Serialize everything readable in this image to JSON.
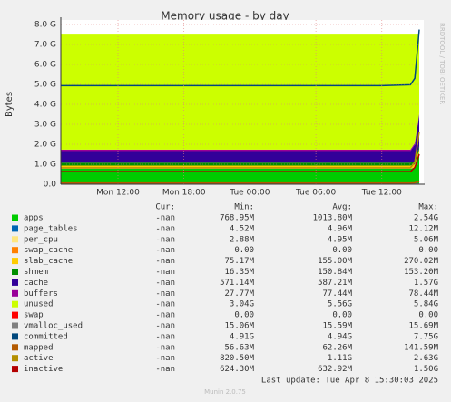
{
  "chart_data": {
    "type": "area",
    "title": "Memory usage - by day",
    "y_label": "Bytes",
    "side_text": "RRDTOOL / TOBI OETIKER",
    "footer": "Last update: Tue Apr  8 15:30:03 2025",
    "version": "Munin 2.0.75",
    "grid": true,
    "stat_headers": [
      "Cur:",
      "Min:",
      "Avg:",
      "Max:"
    ],
    "x": [
      6.8,
      12,
      18,
      24,
      30,
      36,
      38.6,
      39.0,
      39.4
    ],
    "xlim": [
      6.8,
      39.4
    ],
    "xticks": [
      {
        "value": 12,
        "label": "Mon 12:00"
      },
      {
        "value": 18,
        "label": "Mon 18:00"
      },
      {
        "value": 24,
        "label": "Tue 00:00"
      },
      {
        "value": 30,
        "label": "Tue 06:00"
      },
      {
        "value": 36,
        "label": "Tue 12:00"
      }
    ],
    "ylim": [
      0,
      8589934592
    ],
    "yticks": [
      {
        "value": 0,
        "label": "0.0"
      },
      {
        "value": 1073741824,
        "label": "1.0 G"
      },
      {
        "value": 2147483648,
        "label": "2.0 G"
      },
      {
        "value": 3221225472,
        "label": "3.0 G"
      },
      {
        "value": 4294967296,
        "label": "4.0 G"
      },
      {
        "value": 5368709120,
        "label": "5.0 G"
      },
      {
        "value": 6442450944,
        "label": "6.0 G"
      },
      {
        "value": 7516192768,
        "label": "7.0 G"
      },
      {
        "value": 8589934592,
        "label": "8.0 G"
      }
    ],
    "series": [
      {
        "name": "apps",
        "color": "#00cc00",
        "style": "area",
        "stats": [
          "-nan",
          "768.95M",
          "1013.80M",
          "2.54G"
        ],
        "values": [
          830000000,
          830000000,
          830000000,
          830000000,
          830000000,
          830000000,
          830000000,
          900000000,
          1700000000
        ]
      },
      {
        "name": "page_tables",
        "color": "#0066b3",
        "style": "area",
        "stats": [
          "-nan",
          "4.52M",
          "4.96M",
          "12.12M"
        ],
        "values": [
          5000000,
          5000000,
          5000000,
          5000000,
          5000000,
          5000000,
          5000000,
          5000000,
          5000000
        ]
      },
      {
        "name": "per_cpu",
        "color": "#ffe680",
        "style": "area",
        "stats": [
          "-nan",
          "2.88M",
          "4.95M",
          "5.06M"
        ],
        "values": [
          5000000,
          5000000,
          5000000,
          5000000,
          5000000,
          5000000,
          5000000,
          5000000,
          5000000
        ]
      },
      {
        "name": "swap_cache",
        "color": "#ff8000",
        "style": "area",
        "stats": [
          "-nan",
          "0.00",
          "0.00",
          "0.00"
        ],
        "values": [
          0,
          0,
          0,
          0,
          0,
          0,
          0,
          0,
          0
        ]
      },
      {
        "name": "slab_cache",
        "color": "#ffcc00",
        "style": "area",
        "stats": [
          "-nan",
          "75.17M",
          "155.00M",
          "270.02M"
        ],
        "values": [
          160000000,
          160000000,
          160000000,
          160000000,
          160000000,
          160000000,
          160000000,
          160000000,
          160000000
        ]
      },
      {
        "name": "shmem",
        "color": "#008f00",
        "style": "area",
        "stats": [
          "-nan",
          "16.35M",
          "150.84M",
          "153.20M"
        ],
        "values": [
          160000000,
          160000000,
          160000000,
          160000000,
          160000000,
          160000000,
          160000000,
          160000000,
          160000000
        ]
      },
      {
        "name": "cache",
        "color": "#330099",
        "style": "area",
        "stats": [
          "-nan",
          "571.14M",
          "587.21M",
          "1.57G"
        ],
        "values": [
          620000000,
          620000000,
          620000000,
          620000000,
          620000000,
          620000000,
          620000000,
          900000000,
          1700000000
        ]
      },
      {
        "name": "buffers",
        "color": "#990099",
        "style": "area",
        "stats": [
          "-nan",
          "27.77M",
          "77.44M",
          "78.44M"
        ],
        "values": [
          80000000,
          80000000,
          80000000,
          80000000,
          80000000,
          80000000,
          80000000,
          80000000,
          80000000
        ]
      },
      {
        "name": "unused",
        "color": "#ccff00",
        "style": "area",
        "stats": [
          "-nan",
          "3.04G",
          "5.56G",
          "5.84G"
        ],
        "values": [
          6190000000,
          6190000000,
          6190000000,
          6190000000,
          6190000000,
          6190000000,
          6190000000,
          5840000000,
          4240000000
        ]
      },
      {
        "name": "swap",
        "color": "#ff0000",
        "style": "area",
        "stats": [
          "-nan",
          "0.00",
          "0.00",
          "0.00"
        ],
        "values": [
          0,
          0,
          0,
          0,
          0,
          0,
          0,
          0,
          0
        ]
      },
      {
        "name": "vmalloc_used",
        "color": "#808080",
        "style": "line",
        "stats": [
          "-nan",
          "15.06M",
          "15.59M",
          "15.69M"
        ],
        "values": [
          16700000,
          16700000,
          16700000,
          16700000,
          16700000,
          16700000,
          16700000,
          16700000,
          16700000
        ]
      },
      {
        "name": "committed",
        "color": "#00487d",
        "style": "line",
        "stats": [
          "-nan",
          "4.91G",
          "4.94G",
          "7.75G"
        ],
        "values": [
          5300000000,
          5300000000,
          5300000000,
          5300000000,
          5300000000,
          5300000000,
          5350000000,
          5700000000,
          8320000000
        ]
      },
      {
        "name": "mapped",
        "color": "#b35a00",
        "style": "line",
        "stats": [
          "-nan",
          "56.63M",
          "62.26M",
          "141.59M"
        ],
        "values": [
          67000000,
          67000000,
          67000000,
          67000000,
          67000000,
          67000000,
          67000000,
          80000000,
          150000000
        ]
      },
      {
        "name": "active",
        "color": "#b38f00",
        "style": "line",
        "stats": [
          "-nan",
          "820.50M",
          "1.11G",
          "2.63G"
        ],
        "values": [
          880000000,
          880000000,
          880000000,
          880000000,
          880000000,
          880000000,
          880000000,
          1200000000,
          2820000000
        ]
      },
      {
        "name": "inactive",
        "color": "#b30000",
        "style": "line",
        "stats": [
          "-nan",
          "624.30M",
          "632.92M",
          "1.50G"
        ],
        "values": [
          680000000,
          680000000,
          680000000,
          680000000,
          680000000,
          680000000,
          680000000,
          900000000,
          1610000000
        ]
      }
    ]
  }
}
